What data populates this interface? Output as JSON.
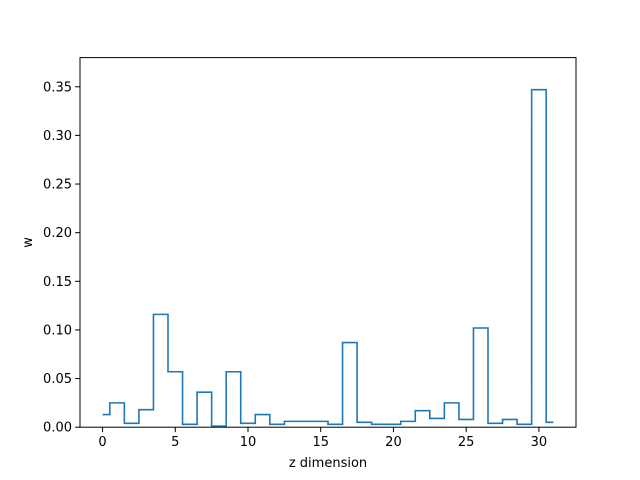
{
  "chart_data": {
    "type": "line",
    "drawstyle": "steps-mid",
    "title": "",
    "xlabel": "z dimension",
    "ylabel": "w",
    "xlim": [
      -1.55,
      32.55
    ],
    "ylim": [
      0,
      0.38
    ],
    "xticks": [
      0,
      5,
      10,
      15,
      20,
      25,
      30
    ],
    "yticks": [
      0.0,
      0.05,
      0.1,
      0.15,
      0.2,
      0.25,
      0.3,
      0.35
    ],
    "line_color": "#1f77b4",
    "grid": false,
    "x": [
      0,
      1,
      2,
      3,
      4,
      5,
      6,
      7,
      8,
      9,
      10,
      11,
      12,
      13,
      14,
      15,
      16,
      17,
      18,
      19,
      20,
      21,
      22,
      23,
      24,
      25,
      26,
      27,
      28,
      29,
      30,
      31
    ],
    "series": [
      {
        "values": [
          0.013,
          0.025,
          0.004,
          0.018,
          0.116,
          0.057,
          0.003,
          0.036,
          0.001,
          0.057,
          0.004,
          0.013,
          0.003,
          0.006,
          0.006,
          0.006,
          0.003,
          0.087,
          0.005,
          0.003,
          0.003,
          0.006,
          0.017,
          0.009,
          0.025,
          0.008,
          0.102,
          0.004,
          0.008,
          0.003,
          0.347,
          0.005
        ]
      }
    ]
  }
}
